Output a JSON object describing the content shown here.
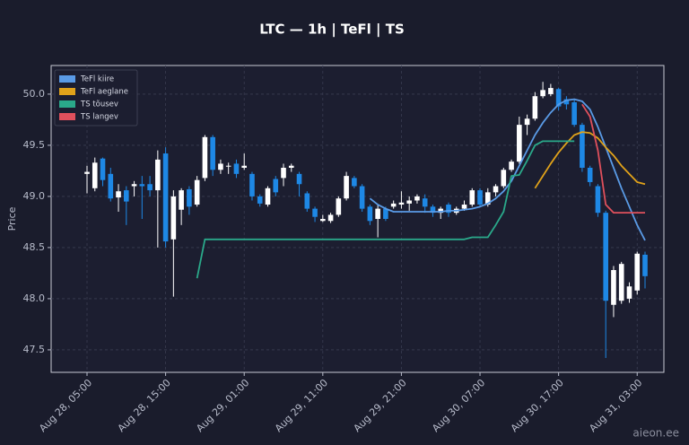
{
  "chart_data": {
    "type": "candlestick",
    "title": "LTC — 1h  |  TeFl  |  TS",
    "ylabel": "Price",
    "watermark": "aieon.ee",
    "x": [
      "Aug 28, 05:00",
      "Aug 28, 06:00",
      "Aug 28, 07:00",
      "Aug 28, 08:00",
      "Aug 28, 09:00",
      "Aug 28, 10:00",
      "Aug 28, 11:00",
      "Aug 28, 12:00",
      "Aug 28, 13:00",
      "Aug 28, 14:00",
      "Aug 28, 15:00",
      "Aug 28, 16:00",
      "Aug 28, 17:00",
      "Aug 28, 18:00",
      "Aug 28, 19:00",
      "Aug 28, 20:00",
      "Aug 28, 21:00",
      "Aug 28, 22:00",
      "Aug 28, 23:00",
      "Aug 29, 00:00",
      "Aug 29, 01:00",
      "Aug 29, 02:00",
      "Aug 29, 03:00",
      "Aug 29, 04:00",
      "Aug 29, 05:00",
      "Aug 29, 06:00",
      "Aug 29, 07:00",
      "Aug 29, 08:00",
      "Aug 29, 09:00",
      "Aug 29, 10:00",
      "Aug 29, 11:00",
      "Aug 29, 12:00",
      "Aug 29, 13:00",
      "Aug 29, 14:00",
      "Aug 29, 15:00",
      "Aug 29, 16:00",
      "Aug 29, 17:00",
      "Aug 29, 18:00",
      "Aug 29, 19:00",
      "Aug 29, 20:00",
      "Aug 29, 21:00",
      "Aug 29, 22:00",
      "Aug 29, 23:00",
      "Aug 30, 00:00",
      "Aug 30, 01:00",
      "Aug 30, 02:00",
      "Aug 30, 03:00",
      "Aug 30, 04:00",
      "Aug 30, 05:00",
      "Aug 30, 06:00",
      "Aug 30, 07:00",
      "Aug 30, 08:00",
      "Aug 30, 09:00",
      "Aug 30, 10:00",
      "Aug 30, 11:00",
      "Aug 30, 12:00",
      "Aug 30, 13:00",
      "Aug 30, 14:00",
      "Aug 30, 15:00",
      "Aug 30, 16:00",
      "Aug 30, 17:00",
      "Aug 30, 18:00",
      "Aug 30, 19:00",
      "Aug 30, 20:00",
      "Aug 30, 21:00",
      "Aug 30, 22:00",
      "Aug 30, 23:00",
      "Aug 31, 00:00",
      "Aug 31, 01:00",
      "Aug 31, 02:00",
      "Aug 31, 03:00",
      "Aug 31, 04:00"
    ],
    "xticks": [
      "Aug 28, 05:00",
      "Aug 28, 15:00",
      "Aug 29, 01:00",
      "Aug 29, 11:00",
      "Aug 29, 21:00",
      "Aug 30, 07:00",
      "Aug 30, 17:00",
      "Aug 31, 03:00"
    ],
    "ylim": [
      47.28,
      50.28
    ],
    "yticks": [
      47.5,
      {
        "value": 48,
        "label": "48.0"
      },
      48.5,
      {
        "value": 49,
        "label": "49.0"
      },
      49.5,
      {
        "value": 50,
        "label": "50.0"
      }
    ],
    "grid": true,
    "legend": "upper left",
    "up_color": "#ffffff",
    "down_color": "#1e88e5",
    "candles": {
      "open": [
        49.22,
        49.08,
        49.37,
        49.22,
        48.99,
        49.06,
        49.1,
        49.12,
        49.12,
        49.06,
        49.42,
        48.58,
        48.87,
        49.07,
        48.92,
        49.18,
        49.58,
        49.26,
        49.3,
        49.32,
        49.28,
        49.22,
        49.0,
        48.92,
        49.17,
        49.18,
        49.28,
        49.22,
        49.03,
        48.88,
        48.76,
        48.76,
        48.82,
        48.98,
        49.18,
        49.1,
        48.9,
        48.78,
        48.88,
        48.9,
        48.92,
        48.93,
        48.96,
        48.98,
        48.9,
        48.84,
        48.92,
        48.84,
        48.88,
        48.92,
        49.06,
        48.92,
        49.04,
        49.1,
        49.26,
        49.34,
        49.7,
        49.76,
        49.98,
        50.0,
        50.05,
        49.95,
        49.92,
        49.7,
        49.28,
        49.1,
        48.84,
        47.94,
        47.98,
        48.0,
        48.08,
        48.43
      ],
      "high": [
        49.3,
        49.38,
        49.38,
        49.28,
        49.12,
        49.1,
        49.15,
        49.2,
        49.2,
        49.45,
        49.48,
        49.06,
        49.08,
        49.1,
        49.2,
        49.6,
        49.6,
        49.36,
        49.33,
        49.36,
        49.42,
        49.24,
        49.02,
        49.1,
        49.2,
        49.32,
        49.32,
        49.24,
        49.05,
        48.9,
        48.82,
        48.84,
        49.0,
        49.24,
        49.2,
        49.12,
        48.92,
        48.92,
        48.9,
        48.96,
        49.05,
        49.0,
        49.02,
        49.02,
        48.92,
        48.9,
        48.94,
        48.9,
        48.96,
        49.08,
        49.08,
        49.08,
        49.12,
        49.28,
        49.36,
        49.78,
        49.8,
        50.02,
        50.12,
        50.1,
        50.06,
        49.98,
        49.95,
        49.72,
        49.3,
        49.12,
        48.86,
        48.32,
        48.36,
        48.16,
        48.46,
        48.46
      ],
      "low": [
        49.03,
        49.05,
        49.1,
        48.95,
        48.85,
        48.72,
        49.0,
        48.78,
        49.0,
        48.5,
        48.5,
        48.02,
        48.72,
        48.82,
        48.9,
        49.15,
        49.2,
        49.22,
        49.22,
        49.18,
        49.26,
        48.96,
        48.9,
        48.9,
        49.0,
        49.1,
        49.24,
        49.0,
        48.85,
        48.75,
        48.75,
        48.74,
        48.8,
        48.96,
        49.08,
        48.85,
        48.72,
        48.6,
        48.76,
        48.88,
        48.88,
        48.86,
        48.93,
        48.84,
        48.8,
        48.78,
        48.8,
        48.82,
        48.86,
        48.9,
        48.9,
        48.9,
        49.0,
        49.08,
        49.24,
        49.32,
        49.6,
        49.74,
        49.96,
        49.98,
        49.84,
        49.85,
        49.68,
        49.24,
        49.1,
        48.8,
        47.42,
        47.82,
        47.95,
        47.96,
        48.04,
        48.1
      ],
      "close": [
        49.24,
        49.33,
        49.16,
        48.98,
        49.05,
        48.95,
        49.12,
        49.1,
        49.06,
        49.36,
        48.56,
        49.0,
        49.06,
        48.9,
        49.16,
        49.58,
        49.26,
        49.32,
        49.3,
        49.22,
        49.3,
        49.0,
        48.93,
        49.08,
        49.04,
        49.28,
        49.3,
        49.12,
        48.88,
        48.8,
        48.78,
        48.82,
        48.98,
        49.2,
        49.1,
        48.88,
        48.76,
        48.88,
        48.78,
        48.93,
        48.94,
        48.96,
        49.0,
        48.9,
        48.84,
        48.88,
        48.84,
        48.88,
        48.92,
        49.06,
        48.92,
        49.04,
        49.1,
        49.26,
        49.34,
        49.7,
        49.76,
        49.98,
        50.04,
        50.06,
        49.88,
        49.9,
        49.7,
        49.28,
        49.14,
        48.84,
        47.98,
        48.28,
        48.34,
        48.12,
        48.44,
        48.22
      ]
    },
    "series": [
      {
        "name": "TeFl kiire",
        "color": "#5a9be6",
        "values": [
          null,
          null,
          null,
          null,
          null,
          null,
          null,
          null,
          null,
          null,
          null,
          null,
          null,
          null,
          null,
          null,
          null,
          null,
          null,
          null,
          null,
          null,
          null,
          null,
          null,
          null,
          null,
          null,
          null,
          null,
          null,
          null,
          null,
          null,
          null,
          null,
          48.98,
          48.92,
          48.88,
          48.85,
          48.85,
          48.85,
          48.85,
          48.85,
          48.85,
          48.85,
          48.86,
          48.86,
          48.87,
          48.88,
          48.9,
          48.93,
          48.98,
          49.05,
          49.15,
          49.3,
          49.45,
          49.6,
          49.72,
          49.82,
          49.9,
          49.94,
          49.95,
          49.93,
          49.85,
          49.68,
          49.48,
          49.28,
          49.08,
          48.9,
          48.72,
          48.57
        ]
      },
      {
        "name": "TeFl aeglane",
        "color": "#e0a21a",
        "values": [
          null,
          null,
          null,
          null,
          null,
          null,
          null,
          null,
          null,
          null,
          null,
          null,
          null,
          null,
          null,
          null,
          null,
          null,
          null,
          null,
          null,
          null,
          null,
          null,
          null,
          null,
          null,
          null,
          null,
          null,
          null,
          null,
          null,
          null,
          null,
          null,
          null,
          null,
          null,
          null,
          null,
          null,
          null,
          null,
          null,
          null,
          null,
          null,
          null,
          null,
          null,
          null,
          null,
          null,
          null,
          null,
          null,
          49.08,
          49.2,
          49.32,
          49.43,
          49.52,
          49.6,
          49.63,
          49.62,
          49.57,
          49.48,
          49.4,
          49.3,
          49.22,
          49.14,
          49.12
        ]
      },
      {
        "name": "TS tõusev",
        "color": "#2aa98a",
        "values": [
          null,
          null,
          null,
          null,
          null,
          null,
          null,
          null,
          null,
          null,
          null,
          null,
          null,
          null,
          48.2,
          48.58,
          48.58,
          48.58,
          48.58,
          48.58,
          48.58,
          48.58,
          48.58,
          48.58,
          48.58,
          48.58,
          48.58,
          48.58,
          48.58,
          48.58,
          48.58,
          48.58,
          48.58,
          48.58,
          48.58,
          48.58,
          48.58,
          48.58,
          48.58,
          48.58,
          48.58,
          48.58,
          48.58,
          48.58,
          48.58,
          48.58,
          48.58,
          48.58,
          48.58,
          48.6,
          48.6,
          48.6,
          48.72,
          48.85,
          49.2,
          49.21,
          49.35,
          49.5,
          49.54,
          49.54,
          49.54,
          49.54,
          49.54,
          null,
          null,
          null,
          null,
          null,
          null,
          null,
          null,
          null
        ]
      },
      {
        "name": "TS langev",
        "color": "#e0505c",
        "values": [
          null,
          null,
          null,
          null,
          null,
          null,
          null,
          null,
          null,
          null,
          null,
          null,
          null,
          null,
          null,
          null,
          null,
          null,
          null,
          null,
          null,
          null,
          null,
          null,
          null,
          null,
          null,
          null,
          null,
          null,
          null,
          null,
          null,
          null,
          null,
          null,
          null,
          null,
          null,
          null,
          null,
          null,
          null,
          null,
          null,
          null,
          null,
          null,
          null,
          null,
          null,
          null,
          null,
          null,
          null,
          null,
          null,
          null,
          null,
          null,
          null,
          null,
          null,
          49.9,
          49.78,
          49.45,
          48.92,
          48.84,
          48.84,
          48.84,
          48.84,
          48.84
        ]
      }
    ]
  }
}
